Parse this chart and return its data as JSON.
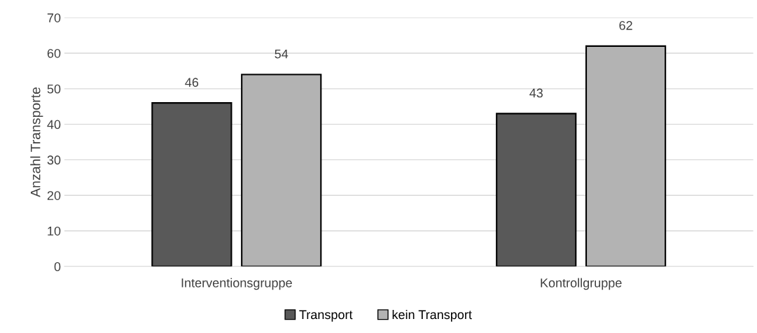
{
  "chart_data": {
    "type": "bar",
    "ylabel": "Anzahl Transporte",
    "categories": [
      "Interventionsgruppe",
      "Kontrollgruppe"
    ],
    "series": [
      {
        "name": "Transport",
        "color": "#595959",
        "values": [
          46,
          43
        ]
      },
      {
        "name": "kein Transport",
        "color": "#b3b3b3",
        "values": [
          54,
          62
        ]
      }
    ],
    "ylim": [
      0,
      70
    ],
    "yticks": [
      0,
      10,
      20,
      30,
      40,
      50,
      60,
      70
    ],
    "grid": "y",
    "legend": "bottom",
    "data_labels": true
  }
}
